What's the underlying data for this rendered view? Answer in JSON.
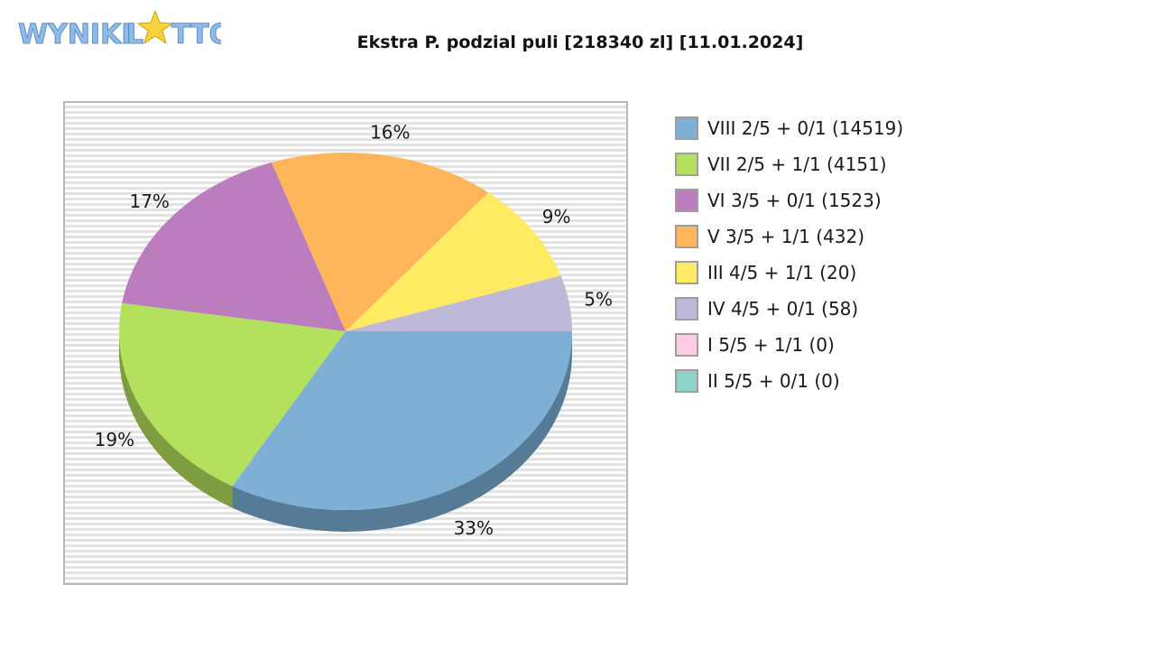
{
  "logo": {
    "alt": "WYNIKI LOTTO",
    "part1": "WYNIKI",
    "part2_a": "L",
    "part2_b": "TTO",
    "color": "#8fbbe8",
    "star_color": "#f7d23a"
  },
  "chart_data": {
    "type": "pie",
    "title": "Ekstra P. podzial puli [218340 zl] [11.01.2024]",
    "legend_position": "right",
    "slices": [
      {
        "label": "VIII 2/5 + 0/1 (14519)",
        "percent": 33,
        "value_label": "33%",
        "color": "#7eafd4",
        "shade": "#567b97"
      },
      {
        "label": "VII 2/5 + 1/1 (4151)",
        "percent": 19,
        "value_label": "19%",
        "color": "#b3e05d",
        "shade": "#7e9c40"
      },
      {
        "label": "VI 3/5 + 0/1 (1523)",
        "percent": 17,
        "value_label": "17%",
        "color": "#bb7dbd",
        "shade": "#845885"
      },
      {
        "label": "V 3/5 + 1/1 (432)",
        "percent": 16,
        "value_label": "16%",
        "color": "#ffb55a",
        "shade": "#b3803f"
      },
      {
        "label": "III 4/5 + 1/1 (20)",
        "percent": 9,
        "value_label": "9%",
        "color": "#ffea64",
        "shade": "#b3a446"
      },
      {
        "label": "IV 4/5 + 0/1 (58)",
        "percent": 5,
        "value_label": "5%",
        "color": "#beb8d9",
        "shade": "#858198"
      },
      {
        "label": "I 5/5 + 1/1 (0)",
        "percent": 0,
        "value_label": "",
        "color": "#fdcce4",
        "shade": "#b18fa0"
      },
      {
        "label": "II 5/5 + 0/1 (0)",
        "percent": 0,
        "value_label": "",
        "color": "#8ed3c7",
        "shade": "#64948b"
      }
    ]
  }
}
